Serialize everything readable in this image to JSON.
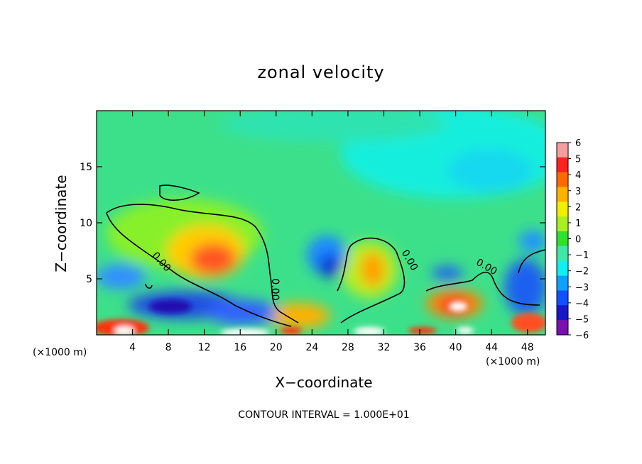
{
  "chart_data": {
    "type": "heatmap",
    "title": "zonal velocity",
    "xlabel": "X−coordinate",
    "ylabel": "Z−coordinate",
    "x_unit_label": "(×1000 m)",
    "x_unit_label_right": "(×1000 m)",
    "xlim": [
      0,
      50
    ],
    "ylim": [
      0,
      20
    ],
    "x_ticks": [
      4,
      8,
      12,
      16,
      20,
      24,
      28,
      32,
      36,
      40,
      44,
      48
    ],
    "y_ticks": [
      5,
      10,
      15
    ],
    "colorbar": {
      "range": [
        -6,
        6
      ],
      "ticks": [
        6,
        5,
        4,
        3,
        2,
        1,
        0,
        -1,
        -2,
        -3,
        -4,
        -5,
        -6
      ],
      "tick_labels": [
        "6",
        "5",
        "4",
        "3",
        "2",
        "1",
        "0",
        "−1",
        "−2",
        "−3",
        "−4",
        "−5",
        "−6"
      ]
    },
    "contour_labels": [
      "0.00",
      "0.00",
      "0.00",
      "0.00"
    ],
    "footnote": "CONTOUR INTERVAL = 1.000E+01",
    "features": [
      {
        "x": 13,
        "z": 6.3,
        "value": 4.5
      },
      {
        "x": 40,
        "z": 2.6,
        "value": 6
      },
      {
        "x": 30,
        "z": 6,
        "value": 3
      },
      {
        "x": 2,
        "z": 0.7,
        "value": 6
      },
      {
        "x": 26,
        "z": 6,
        "value": -3.5
      },
      {
        "x": 9,
        "z": 2.5,
        "value": -5
      },
      {
        "x": 48,
        "z": 3.5,
        "value": -5
      }
    ]
  }
}
